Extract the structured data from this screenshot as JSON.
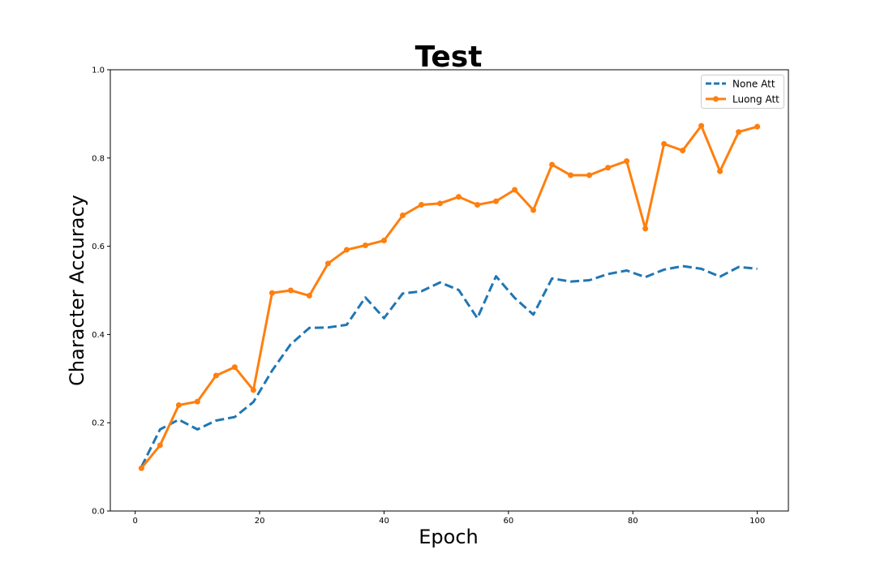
{
  "chart_data": {
    "type": "line",
    "title": "Test",
    "xlabel": "Epoch",
    "ylabel": "Character Accuracy",
    "xlim": [
      -4,
      105
    ],
    "ylim": [
      0.0,
      1.0
    ],
    "xticks": [
      "0",
      "20",
      "40",
      "60",
      "80",
      "100"
    ],
    "yticks": [
      "0.0",
      "0.2",
      "0.4",
      "0.6",
      "0.8",
      "1.0"
    ],
    "grid": false,
    "legend_position": "top-right",
    "x": [
      1,
      4,
      7,
      10,
      13,
      16,
      19,
      22,
      25,
      28,
      31,
      34,
      37,
      40,
      43,
      46,
      49,
      52,
      55,
      58,
      61,
      64,
      67,
      70,
      73,
      76,
      79,
      82,
      85,
      88,
      91,
      94,
      97,
      100
    ],
    "series": [
      {
        "name": "None Att",
        "color": "#1f77b4",
        "style": "dashed",
        "values": [
          0.1,
          0.185,
          0.207,
          0.185,
          0.205,
          0.213,
          0.247,
          0.318,
          0.378,
          0.415,
          0.416,
          0.422,
          0.484,
          0.437,
          0.493,
          0.498,
          0.518,
          0.501,
          0.437,
          0.532,
          0.483,
          0.445,
          0.527,
          0.52,
          0.523,
          0.537,
          0.545,
          0.53,
          0.547,
          0.555,
          0.549,
          0.531,
          0.553,
          0.549
        ]
      },
      {
        "name": "Luong Att",
        "color": "#ff7f0e",
        "style": "solid-markers",
        "values": [
          0.097,
          0.149,
          0.24,
          0.248,
          0.307,
          0.326,
          0.274,
          0.494,
          0.5,
          0.488,
          0.561,
          0.592,
          0.602,
          0.613,
          0.67,
          0.694,
          0.697,
          0.712,
          0.694,
          0.702,
          0.728,
          0.682,
          0.785,
          0.761,
          0.761,
          0.778,
          0.793,
          0.64,
          0.832,
          0.817,
          0.873,
          0.77,
          0.859,
          0.871
        ]
      }
    ]
  }
}
